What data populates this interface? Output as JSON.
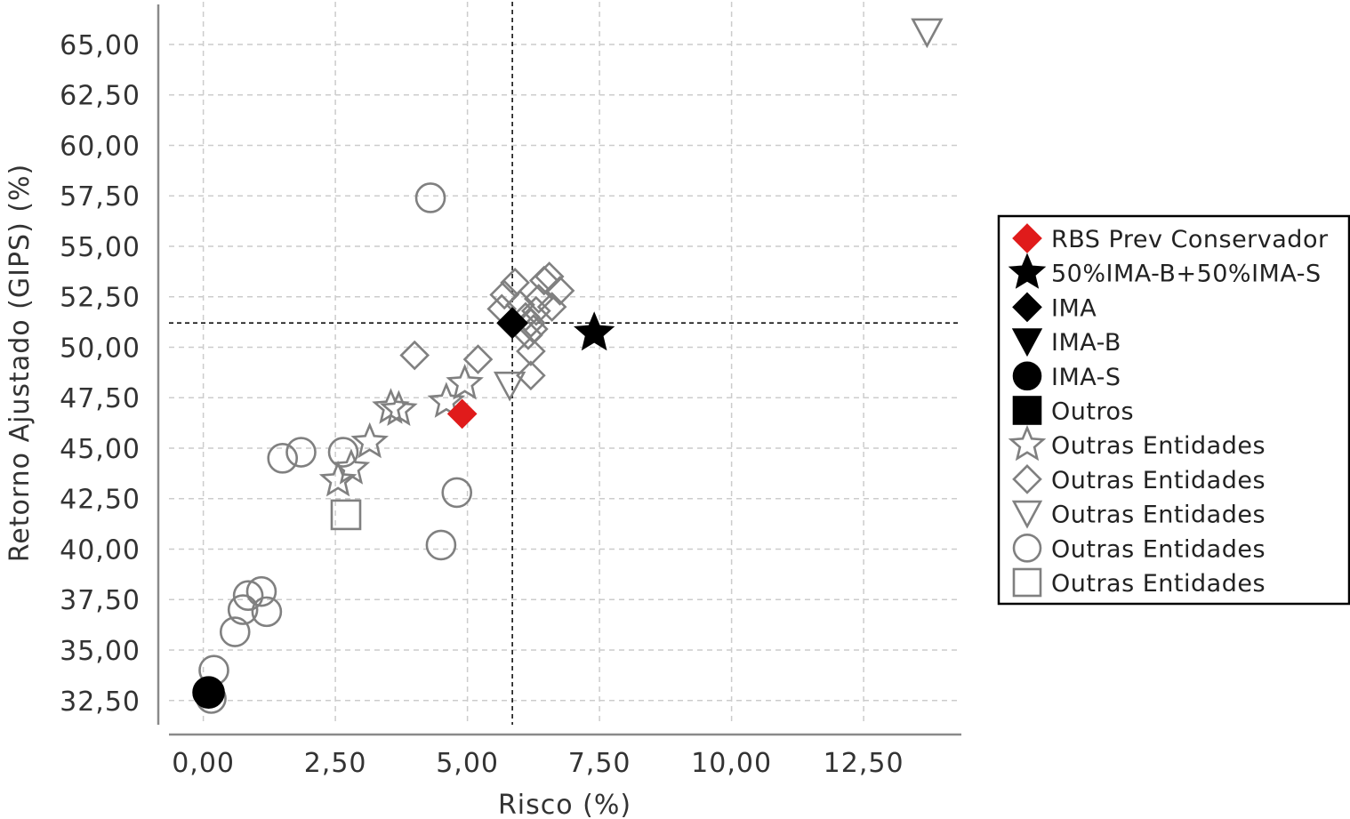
{
  "chart_data": {
    "type": "scatter",
    "xlabel": "Risco (%)",
    "ylabel": "Retorno Ajustado (GIPS) (%)",
    "xlim": [
      -0.65,
      14.35
    ],
    "ylim": [
      31.3,
      67.2
    ],
    "xticks": [
      0,
      2.5,
      5,
      7.5,
      10,
      12.5
    ],
    "xtick_labels": [
      "0,00",
      "2,50",
      "5,00",
      "7,50",
      "10,00",
      "12,50"
    ],
    "yticks": [
      32.5,
      35,
      37.5,
      40,
      42.5,
      45,
      47.5,
      50,
      52.5,
      55,
      57.5,
      60,
      62.5,
      65
    ],
    "ytick_labels": [
      "32,50",
      "35,00",
      "37,50",
      "40,00",
      "42,50",
      "45,00",
      "47,50",
      "50,00",
      "52,50",
      "55,00",
      "57,50",
      "60,00",
      "62,50",
      "65,00"
    ],
    "grid": true,
    "reference_lines": {
      "x": 5.85,
      "y": 51.2
    },
    "legend_position": "right",
    "series": [
      {
        "name": "RBS Prev Conservador",
        "marker": "diamond",
        "fill": "#e01b1b",
        "stroke": "#e01b1b",
        "size": 15,
        "points": [
          [
            4.9,
            46.7
          ]
        ]
      },
      {
        "name": "50%IMA-B+50%IMA-S",
        "marker": "star",
        "fill": "#000000",
        "stroke": "#000000",
        "size": 21,
        "points": [
          [
            7.4,
            50.7
          ]
        ]
      },
      {
        "name": "IMA",
        "marker": "diamond",
        "fill": "#000000",
        "stroke": "#000000",
        "size": 16,
        "points": [
          [
            5.85,
            51.2
          ]
        ]
      },
      {
        "name": "IMA-B",
        "marker": "triangle-down",
        "fill": "#000000",
        "stroke": "#000000",
        "size": 16,
        "points": []
      },
      {
        "name": "IMA-S",
        "marker": "circle",
        "fill": "#000000",
        "stroke": "#000000",
        "size": 17,
        "points": [
          [
            0.1,
            32.9
          ]
        ]
      },
      {
        "name": "Outros",
        "marker": "square",
        "fill": "#000000",
        "stroke": "#000000",
        "size": 15,
        "points": []
      },
      {
        "name": "Outras Entidades",
        "marker": "star",
        "fill": "none",
        "stroke": "#808080",
        "size": 19,
        "points": [
          [
            2.55,
            43.4
          ],
          [
            2.8,
            44.0
          ],
          [
            3.15,
            45.3
          ],
          [
            3.55,
            47.0
          ],
          [
            3.7,
            46.9
          ],
          [
            4.6,
            47.3
          ],
          [
            4.95,
            48.2
          ]
        ]
      },
      {
        "name": "Outras Entidades",
        "marker": "diamond",
        "fill": "none",
        "stroke": "#808080",
        "size": 15,
        "points": [
          [
            4.0,
            49.6
          ],
          [
            5.2,
            49.4
          ],
          [
            5.65,
            51.9
          ],
          [
            5.7,
            52.6
          ],
          [
            5.9,
            53.2
          ],
          [
            6.0,
            52.1
          ],
          [
            6.1,
            51.5
          ],
          [
            6.15,
            50.6
          ],
          [
            6.2,
            51.2
          ],
          [
            6.25,
            50.9
          ],
          [
            6.3,
            51.8
          ],
          [
            6.35,
            52.4
          ],
          [
            6.45,
            53.3
          ],
          [
            6.55,
            53.5
          ],
          [
            6.6,
            52.0
          ],
          [
            6.75,
            52.8
          ],
          [
            6.2,
            49.8
          ],
          [
            6.2,
            48.6
          ]
        ]
      },
      {
        "name": "Outras Entidades",
        "marker": "triangle-down",
        "fill": "none",
        "stroke": "#808080",
        "size": 16,
        "points": [
          [
            13.7,
            65.6
          ],
          [
            5.8,
            48.1
          ]
        ]
      },
      {
        "name": "Outras Entidades",
        "marker": "circle",
        "fill": "none",
        "stroke": "#808080",
        "size": 16,
        "points": [
          [
            4.3,
            57.4
          ],
          [
            1.5,
            44.5
          ],
          [
            1.85,
            44.8
          ],
          [
            2.65,
            44.8
          ],
          [
            4.8,
            42.8
          ],
          [
            4.5,
            40.2
          ],
          [
            0.85,
            37.7
          ],
          [
            1.1,
            37.9
          ],
          [
            0.75,
            37.0
          ],
          [
            1.2,
            36.9
          ],
          [
            0.6,
            35.9
          ],
          [
            0.2,
            34.0
          ],
          [
            0.15,
            32.6
          ]
        ]
      },
      {
        "name": "Outras Entidades",
        "marker": "square",
        "fill": "none",
        "stroke": "#808080",
        "size": 16,
        "points": [
          [
            2.7,
            41.7
          ]
        ]
      }
    ]
  }
}
